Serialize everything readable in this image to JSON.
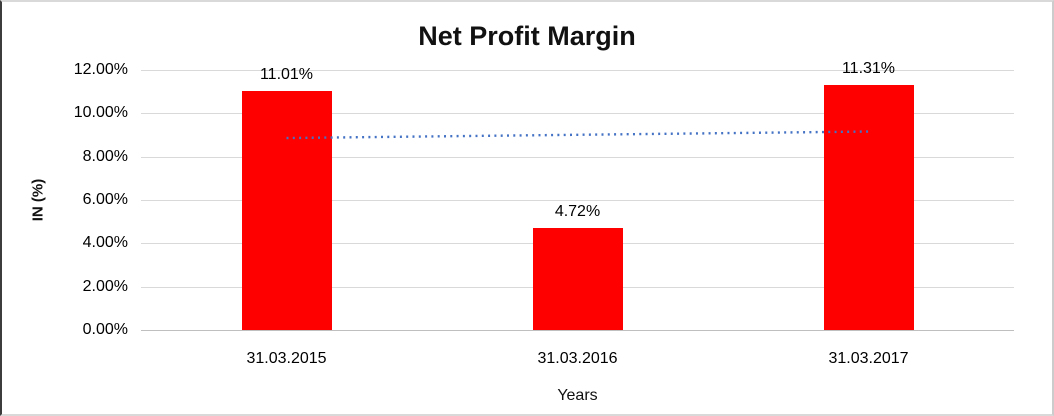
{
  "chart_data": {
    "type": "bar",
    "title": "Net Profit Margin",
    "xlabel": "Years",
    "ylabel": "IN (%)",
    "categories": [
      "31.03.2015",
      "31.03.2016",
      "31.03.2017"
    ],
    "series": [
      {
        "values": [
          11.01,
          4.72,
          11.31
        ],
        "labels": [
          "11.01%",
          "4.72%",
          "11.31%"
        ],
        "color": "#ff0000"
      }
    ],
    "y_axis": {
      "min": 0,
      "max": 12,
      "tick_values": [
        0,
        2,
        4,
        6,
        8,
        10,
        12
      ],
      "tick_labels": [
        "0.00%",
        "2.00%",
        "4.00%",
        "6.00%",
        "8.00%",
        "10.00%",
        "12.00%"
      ]
    },
    "trendline": {
      "type": "linear",
      "style": "dotted",
      "color": "#4472c4",
      "start_value": 8.86,
      "end_value": 9.16
    },
    "grid": true,
    "legend": "none",
    "colors": {
      "bar": "#ff0000",
      "gridline": "#d9d9d9",
      "axis_line": "#bfbfbf",
      "text": "#000000",
      "background": "#ffffff"
    }
  }
}
